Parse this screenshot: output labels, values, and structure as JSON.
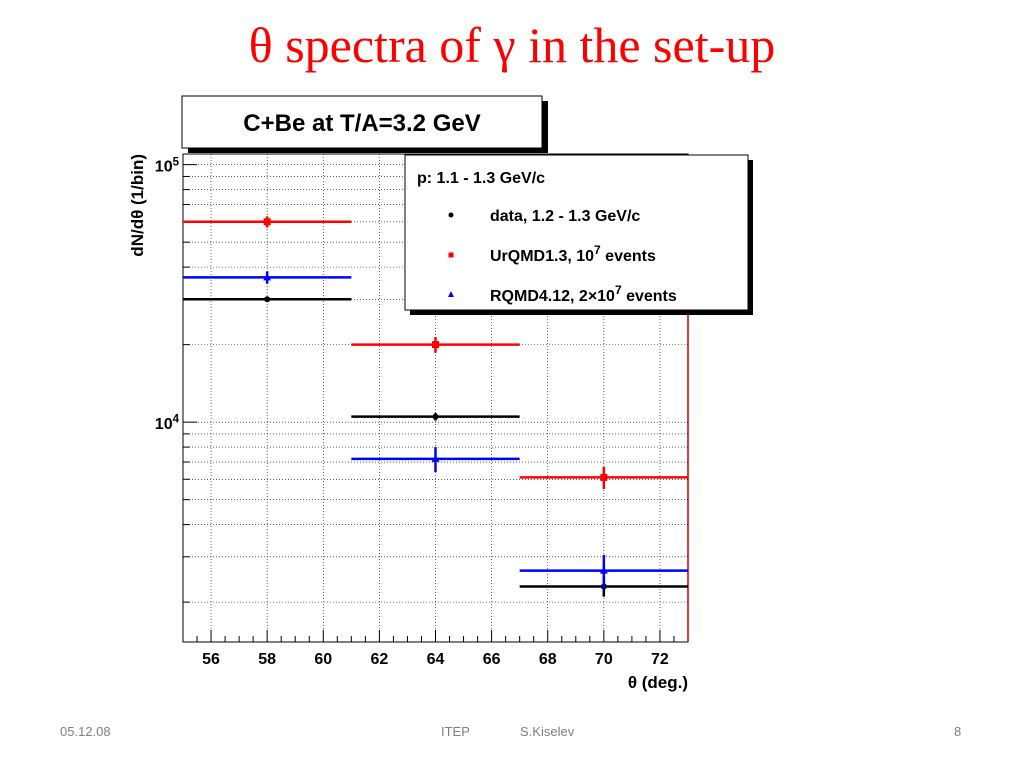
{
  "slide": {
    "title_theta": "θ",
    "title_rest": " spectra of ",
    "title_gamma": "γ",
    "title_end": " in the set-up"
  },
  "footer": {
    "date": "05.12.08",
    "institute": "ITEP",
    "author": "S.Kiselev",
    "page": "8"
  },
  "colors": {
    "title": "#ff0000",
    "data": "#000000",
    "urqmd": "#ff0000",
    "rqmd": "#0000ff"
  },
  "chart_data": {
    "type": "scatter",
    "title": "C+Be at T/A=3.2 GeV",
    "xlabel": "θ (deg.)",
    "ylabel": "dN/dθ (1/bin)",
    "xlim": [
      55,
      73
    ],
    "ylim": [
      1400,
      110000
    ],
    "yscale": "log",
    "grid": true,
    "x_ticks": [
      "56",
      "58",
      "60",
      "62",
      "64",
      "66",
      "68",
      "70",
      "72"
    ],
    "y_ticks": [
      {
        "base": "10",
        "exp": "4",
        "value": 10000
      },
      {
        "base": "10",
        "exp": "5",
        "value": 100000
      }
    ],
    "legend": {
      "placement": "top-right",
      "header": "p: 1.1 - 1.3 GeV/c",
      "entries": [
        {
          "marker": "•",
          "text": "data, 1.2 - 1.3 GeV/c",
          "series": "data"
        },
        {
          "marker": "■",
          "text": "UrQMD1.3, 10",
          "sup": "7",
          "text_after": " events",
          "series": "urqmd"
        },
        {
          "marker": "▲",
          "text": "RQMD4.12, 2×10",
          "sup": "7",
          "text_after": " events",
          "series": "rqmd"
        }
      ]
    },
    "series": [
      {
        "key": "data",
        "marker": "circle",
        "points": [
          {
            "x": 58,
            "xlo": 55,
            "xhi": 61,
            "y": 30000,
            "err": 600
          },
          {
            "x": 64,
            "xlo": 61,
            "xhi": 67,
            "y": 10500,
            "err": 350
          },
          {
            "x": 70,
            "xlo": 67,
            "xhi": 73,
            "y": 2300,
            "err": 200
          }
        ]
      },
      {
        "key": "urqmd",
        "marker": "square",
        "points": [
          {
            "x": 58,
            "xlo": 55,
            "xhi": 61,
            "y": 60000,
            "err": 3000
          },
          {
            "x": 64,
            "xlo": 61,
            "xhi": 67,
            "y": 20000,
            "err": 1400
          },
          {
            "x": 70,
            "xlo": 67,
            "xhi": 73,
            "y": 6100,
            "err": 600
          }
        ]
      },
      {
        "key": "rqmd",
        "marker": "triangle",
        "points": [
          {
            "x": 58,
            "xlo": 55,
            "xhi": 61,
            "y": 36500,
            "err": 2000
          },
          {
            "x": 64,
            "xlo": 61,
            "xhi": 67,
            "y": 7200,
            "err": 800
          },
          {
            "x": 70,
            "xlo": 67,
            "xhi": 73,
            "y": 2650,
            "err": 400
          }
        ]
      }
    ]
  }
}
